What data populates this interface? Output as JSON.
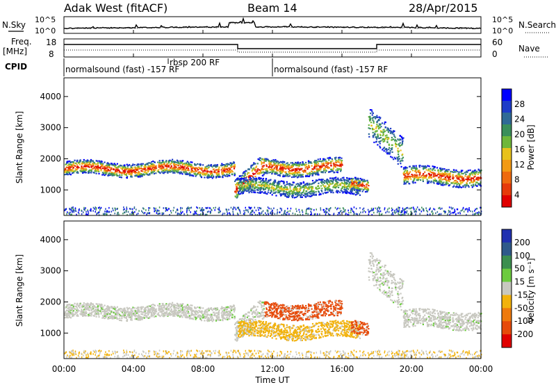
{
  "header": {
    "station": "Adak West (fitACF)",
    "beam": "Beam 14",
    "date": "28/Apr/2015"
  },
  "noise_panel": {
    "left_label": "N.Sky",
    "right_label": "N.Search",
    "yticks": [
      "10^5",
      "10^0"
    ]
  },
  "freq_panel": {
    "left_label_1": "Freq.",
    "left_label_2": "[MHz]",
    "right_label": "Nave",
    "left_ticks": [
      "18",
      "8"
    ],
    "right_ticks": [
      "60",
      "0"
    ]
  },
  "cpid": {
    "label": "CPID",
    "segments": [
      {
        "text": "normalsound (fast) -157 RF",
        "start_hour": 0,
        "end_hour": 12.0
      },
      {
        "text": "rbsp 200 RF",
        "start_hour": 6.0,
        "end_hour": 6.3
      },
      {
        "text": "normalsound (fast) -157 RF",
        "start_hour": 12.0,
        "end_hour": 24
      }
    ]
  },
  "chart_data": [
    {
      "type": "heatmap",
      "title": "",
      "ylabel": "Slant Range [km]",
      "ylim": [
        180,
        4600
      ],
      "yticks": [
        1000,
        2000,
        3000,
        4000
      ],
      "xlim": [
        0,
        24
      ],
      "colorbar": {
        "label": "Power [dB]",
        "ticks": [
          "4",
          "8",
          "12",
          "16",
          "20",
          "24",
          "28"
        ],
        "colors": [
          "#0000ff",
          "#1e3cc8",
          "#2f6a96",
          "#3a8f5a",
          "#6fb73a",
          "#e8c21c",
          "#f39a14",
          "#ef6a0e",
          "#e63a0a",
          "#e00000"
        ]
      }
    },
    {
      "type": "heatmap",
      "title": "",
      "ylabel": "Slant Range [km]",
      "ylim": [
        180,
        4600
      ],
      "yticks": [
        1000,
        2000,
        3000,
        4000
      ],
      "xlim": [
        0,
        24
      ],
      "xlabel": "Time UT",
      "xticks": [
        "00:00",
        "04:00",
        "08:00",
        "12:00",
        "16:00",
        "20:00",
        "00:00"
      ],
      "colorbar": {
        "label": "Velocity [m s⁻¹]",
        "ticks": [
          "200",
          "100",
          "50",
          "15",
          "-15",
          "-50",
          "-100",
          "-200"
        ],
        "colors": [
          "#2030b0",
          "#2f5a8a",
          "#3c8f4f",
          "#6ccb3e",
          "#c8c8c0",
          "#f2b20c",
          "#ef7a0c",
          "#e64a0a",
          "#e00000"
        ]
      }
    }
  ]
}
